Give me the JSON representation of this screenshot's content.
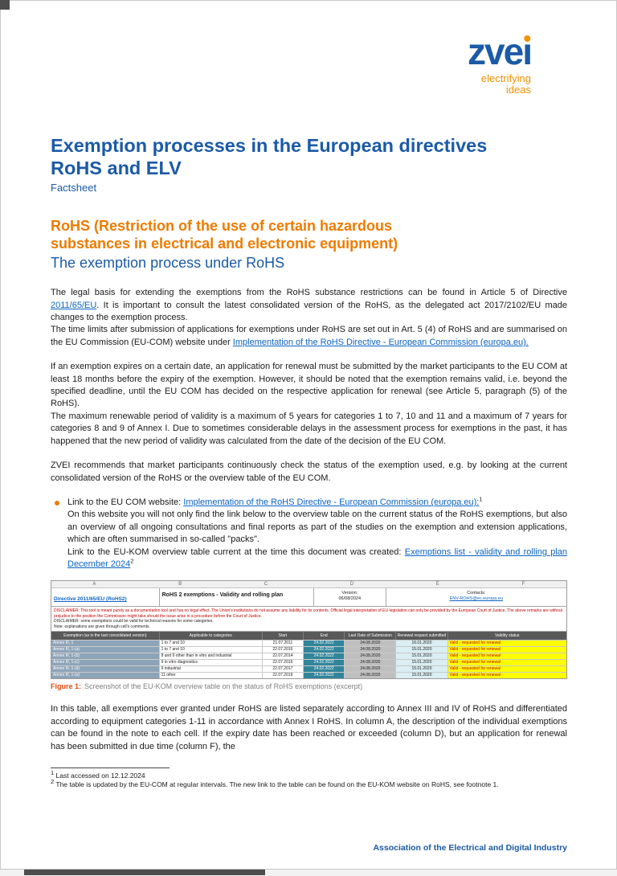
{
  "colors": {
    "brand_blue": "#1b5aa7",
    "brand_orange": "#ee7b00",
    "tagline_orange": "#f29100",
    "link_blue": "#0b63c5",
    "figure_label_orange": "#e8490f",
    "excel_header_gray": "#595959",
    "excel_label_blue_gray": "#8da4b8",
    "excel_end_teal": "#31859b",
    "excel_status_yellow": "#ffff00",
    "excel_status_text_red": "#c00000"
  },
  "logo": {
    "brand_part1": "zve",
    "brand_part2": "ı",
    "tagline1": "electrifying",
    "tagline2": "ideas"
  },
  "header": {
    "title_line1": "Exemption processes in the European directives",
    "title_line2": "RoHS and ELV",
    "subtitle": "Factsheet"
  },
  "section": {
    "orange_line1": "RoHS (Restriction of the use of certain hazardous",
    "orange_line2": "substances in electrical and electronic equipment)",
    "blue_heading": "The exemption process under RoHS"
  },
  "body": {
    "p1": [
      {
        "t": "The legal basis for extending the exemptions from the RoHS substance restrictions can be found in Article 5 of Directive "
      },
      {
        "t": "2011/65/EU",
        "link": true
      },
      {
        "t": ". It is important to consult the latest consolidated version of the RoHS, as the delegated act 2017/2102/EU made changes to the exemption process."
      },
      {
        "br": true
      },
      {
        "t": "The time limits after submission of applications for exemptions under RoHS are set out in Art. 5 (4) of RoHS and are summarised on the EU Commission (EU-COM) website under "
      },
      {
        "t": "Implementation of the RoHS Directive - European Commission (europa.eu).",
        "link": true
      }
    ],
    "p2": [
      {
        "t": "If an exemption expires on a certain date, an application for renewal must be submitted by the market participants to the EU COM at least 18 months before the expiry of the exemption. However, it should be noted that the exemption remains valid, i.e. beyond the specified deadline, until the EU COM has decided on the respective application for renewal (see Article 5, paragraph (5) of the RoHS)."
      },
      {
        "br": true
      },
      {
        "t": "The maximum renewable period of validity is a maximum of 5 years for categories 1 to 7, 10 and 11 and a maximum of 7 years for categories 8 and 9 of Annex I. Due to sometimes considerable delays in the assessment process for exemptions in the past, it has happened that the new period of validity was calculated from the date of the decision of the EU COM."
      }
    ],
    "p3": [
      {
        "t": "ZVEI recommends that market participants continuously check the status of the exemption used, e.g. by looking at the current consolidated version of the RoHS or the overview table of the EU COM."
      }
    ],
    "bullet": [
      {
        "t": "Link to the EU COM website: "
      },
      {
        "t": "Implementation of the RoHS Directive - European Commission (europa.eu):",
        "link": true
      },
      {
        "t": "1",
        "sup": true
      },
      {
        "br": true
      },
      {
        "t": "On this website you will not only find the link below to the overview table on the current status of the RoHS exemptions, but also an overview of all ongoing consultations and final reports as part of the studies on the exemption and extension applications, which are often summarised in so-called \"packs\"."
      },
      {
        "br": true
      },
      {
        "t": "Link to the EU-KOM overview table current at the time this document was created: "
      },
      {
        "t": "Exemptions list - validity and rolling plan December 2024",
        "link": true
      },
      {
        "t": "2",
        "sup": true
      }
    ],
    "p4": [
      {
        "t": "In this table, all exemptions ever granted under RoHS are listed separately according to Annex III and IV of RoHS and differentiated according to equipment categories 1-11 in accordance with Annex I RoHS. In column A, the description of the individual exemptions can be found in the note to each cell. If the expiry date has been reached or exceeded (column D), but an application for renewal has been submitted in due time (column F), the"
      }
    ]
  },
  "excel": {
    "col_letters": [
      "A",
      "B",
      "C",
      "D",
      "E",
      "F"
    ],
    "info": {
      "directive_link": "Directive 2011/65/EU (RoHS2)",
      "title": "RoHS 2 exemptions - Validity and rolling plan",
      "version_label": "Version:",
      "version_value": "06/08/2024",
      "contacts_label": "Contacts:",
      "contacts_value": "ENV-ROHS@ec.europa.eu"
    },
    "disclaimer_red": "DISCLAIMER: This tool is meant purely as a documentation tool and has no legal effect. The Union's institutions do not assume any liability for its contents. Official legal interpretation of EU legislation can only be provided by the European Court of Justice. The above remarks are without prejudice to the position the Commission might take should the issue arise in a procedure before the Court of Justice.",
    "disclaimer_black": "DISCLAIMER: some exemptions could be valid for technical reasons for some categories.",
    "note": "Note: explanations are given through cell's comments.",
    "headers": [
      "Exemption (as in the last consolidated version)",
      "Applicable to categories",
      "Start",
      "End",
      "Last Date of Submission",
      "Renewal request submitted",
      "Validity status"
    ],
    "rows": [
      {
        "exemption": "Annex III, 1",
        "categories": "1 to 7 and 10",
        "start": "21.07.2011",
        "end": "24.02.2022",
        "last_date": "24.08.2020",
        "renewal": "16.01.2020",
        "status": "Valid - requested for renewal"
      },
      {
        "exemption": "Annex III, 1-(a)",
        "categories": "1 to 7 and 10",
        "start": "22.07.2016",
        "end": "24.02.2022",
        "last_date": "24.08.2020",
        "renewal": "15.01.2020",
        "status": "Valid - requested for renewal"
      },
      {
        "exemption": "Annex III, 1-(b)",
        "categories": "8 and 9 other than in vitro and industrial",
        "start": "22.07.2014",
        "end": "24.02.2022",
        "last_date": "24.08.2020",
        "renewal": "15.01.2020",
        "status": "Valid - requested for renewal"
      },
      {
        "exemption": "Annex III, 1-(c)",
        "categories": "9 in vitro diagnostics",
        "start": "22.07.2016",
        "end": "24.02.2022",
        "last_date": "24.08.2020",
        "renewal": "15.01.2020",
        "status": "Valid - requested for renewal"
      },
      {
        "exemption": "Annex III, 1-(d)",
        "categories": "9 industrial",
        "start": "22.07.2017",
        "end": "24.02.2022",
        "last_date": "24.08.2020",
        "renewal": "15.01.2020",
        "status": "Valid - requested for renewal"
      },
      {
        "exemption": "Annex III, 1-(e)",
        "categories": "11 other",
        "start": "22.07.2019",
        "end": "24.02.2022",
        "last_date": "24.08.2020",
        "renewal": "15.01.2020",
        "status": "Valid - requested for renewal"
      }
    ]
  },
  "figure": {
    "label": "Figure 1:",
    "caption": "Screenshot of the EU-KOM overview table on the status of RoHS exemptions (excerpt)"
  },
  "footnotes": {
    "f1_num": "1",
    "f1_text": "Last accessed on 12.12.2024",
    "f2_num": "2",
    "f2_text": "The table is updated by the EU-COM at regular intervals. The new link to the table can be found on the EU-KOM website on RoHS, see footnote 1."
  },
  "footer": {
    "text": "Association of the Electrical and Digital Industry"
  }
}
